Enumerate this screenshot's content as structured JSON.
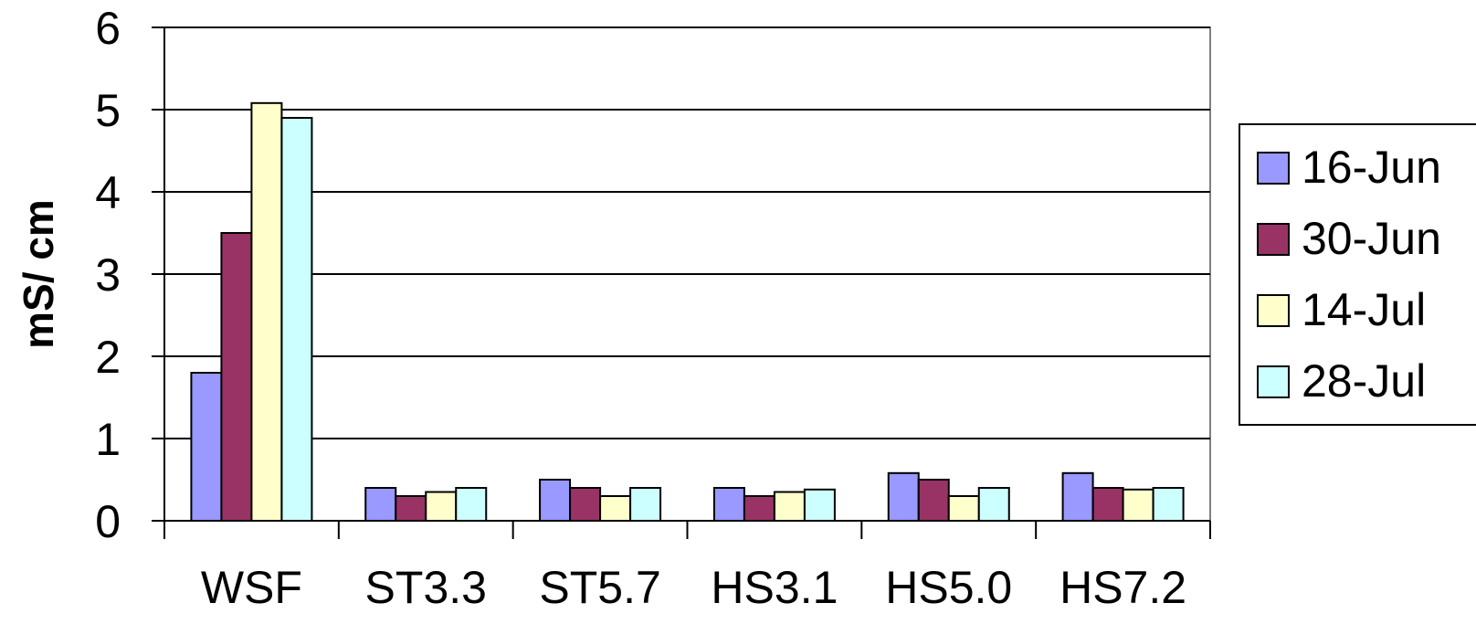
{
  "chart_data": {
    "type": "bar",
    "title": "",
    "xlabel": "",
    "ylabel": "mS/ cm",
    "ylim": [
      0,
      6
    ],
    "yticks": [
      "0",
      "1",
      "2",
      "3",
      "4",
      "5",
      "6"
    ],
    "grid": true,
    "legend_position": "right",
    "categories": [
      "WSF",
      "ST3.3",
      "ST5.7",
      "HS3.1",
      "HS5.0",
      "HS7.2"
    ],
    "series": [
      {
        "name": "16-Jun",
        "color": "#9999ff",
        "values": [
          1.8,
          0.4,
          0.5,
          0.4,
          0.58,
          0.58
        ]
      },
      {
        "name": "30-Jun",
        "color": "#993366",
        "values": [
          3.5,
          0.3,
          0.4,
          0.3,
          0.5,
          0.4
        ]
      },
      {
        "name": "14-Jul",
        "color": "#ffffcc",
        "values": [
          5.08,
          0.35,
          0.3,
          0.35,
          0.3,
          0.38
        ]
      },
      {
        "name": "28-Jul",
        "color": "#ccffff",
        "values": [
          4.9,
          0.4,
          0.4,
          0.38,
          0.4,
          0.4
        ]
      }
    ]
  }
}
